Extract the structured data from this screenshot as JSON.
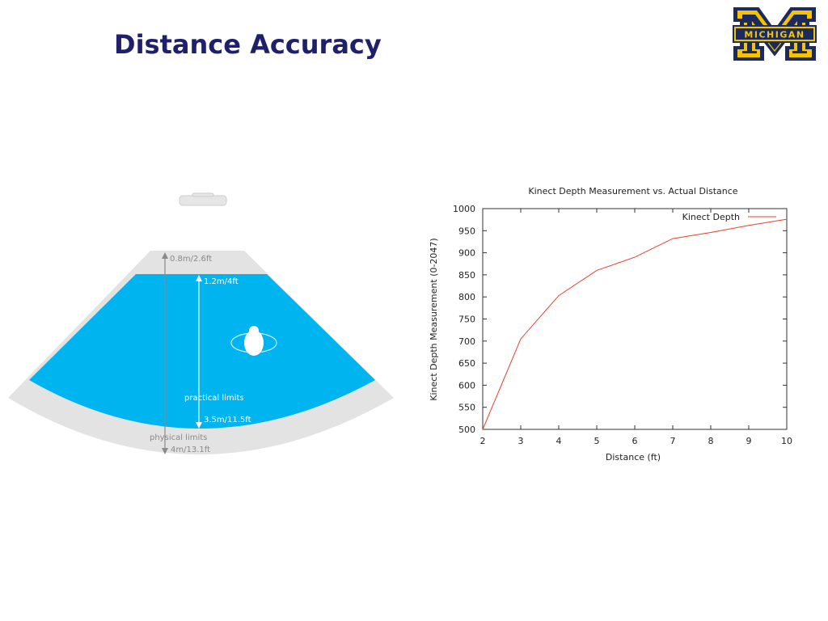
{
  "slide": {
    "title": "Distance Accuracy"
  },
  "logo": {
    "text": "MICHIGAN",
    "registered_mark": "®",
    "colors": {
      "maize": "#f5c400",
      "blue": "#1c2a5e"
    }
  },
  "fov_diagram": {
    "labels": {
      "near_physical": "0.8m/2.6ft",
      "near_practical": "1.2m/4ft",
      "practical": "practical limits",
      "far_practical": "3.5m/11.5ft",
      "physical": "physical limits",
      "far_physical": "4m/13.1ft"
    },
    "colors": {
      "practical_zone": "#00b4f0",
      "physical_zone": "#e3e3e3",
      "label_on_blue": "#ffffff",
      "label_on_gray": "#8a8a8a"
    }
  },
  "chart_data": {
    "type": "line",
    "title": "Kinect Depth Measurement vs. Actual Distance",
    "xlabel": "Distance (ft)",
    "ylabel": "Kinect Depth Measurement (0-2047)",
    "xlim": [
      2,
      10
    ],
    "ylim": [
      500,
      1000
    ],
    "x_ticks": [
      2,
      3,
      4,
      5,
      6,
      7,
      8,
      9,
      10
    ],
    "y_ticks": [
      500,
      550,
      600,
      650,
      700,
      750,
      800,
      850,
      900,
      950,
      1000
    ],
    "grid": false,
    "legend": "top-right",
    "series": [
      {
        "name": "Kinect Depth",
        "color": "#e8402a",
        "x": [
          2,
          3,
          4,
          5,
          6,
          7,
          8,
          9,
          10
        ],
        "y": [
          500,
          705,
          803,
          860,
          890,
          932,
          946,
          962,
          976
        ]
      }
    ]
  }
}
